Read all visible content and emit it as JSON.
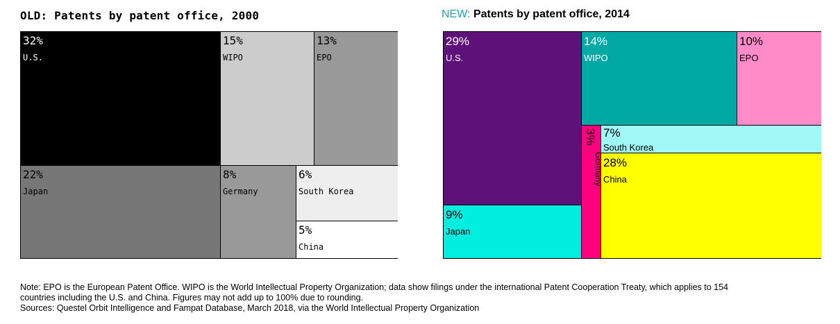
{
  "titles": {
    "old": "OLD: Patents by patent office, 2000",
    "new_prefix": "NEW:",
    "new_main": "Patents by patent office, 2014"
  },
  "colors": {
    "new_prefix": "#16a7a7"
  },
  "chart_data": [
    {
      "type": "treemap",
      "title": "OLD: Patents by patent office, 2000",
      "unit": "%",
      "categories": [
        "U.S.",
        "WIPO",
        "EPO",
        "Japan",
        "Germany",
        "South Korea",
        "China"
      ],
      "values": [
        32,
        15,
        13,
        22,
        8,
        6,
        5
      ],
      "labels": [
        "32%",
        "15%",
        "13%",
        "22%",
        "8%",
        "6%",
        "5%"
      ],
      "colors": [
        "#000000",
        "#cccccc",
        "#999999",
        "#777777",
        "#999999",
        "#eeeeee",
        "#ffffff"
      ],
      "text_colors": [
        "#ffffff",
        "#000000",
        "#000000",
        "#000000",
        "#000000",
        "#000000",
        "#000000"
      ]
    },
    {
      "type": "treemap",
      "title": "NEW: Patents by patent office, 2014",
      "unit": "%",
      "categories": [
        "U.S.",
        "WIPO",
        "EPO",
        "Japan",
        "Germany",
        "South Korea",
        "China"
      ],
      "values": [
        29,
        14,
        10,
        9,
        3,
        7,
        28
      ],
      "labels": [
        "29%",
        "14%",
        "10%",
        "9%",
        "3%",
        "7%",
        "28%"
      ],
      "colors": [
        "#5e1279",
        "#00a9a3",
        "#ff8cc8",
        "#00ede0",
        "#ff0080",
        "#9ff8f6",
        "#ffff00"
      ],
      "text_colors": [
        "#ffffff",
        "#ffffff",
        "#000000",
        "#000000",
        "#000000",
        "#000000",
        "#000000"
      ]
    }
  ],
  "footer": {
    "note_line1": "Note: EPO is the European Patent Office. WIPO is the World Intellectual Property Organization; data show filings under the international Patent Cooperation Treaty, which applies to 154",
    "note_line2": "countries including the U.S. and China. Figures may not add up to 100% due to rounding.",
    "sources": "Sources: Questel Orbit Intelligence and Fampat Database, March 2018, via the World Intellectual Property Organization"
  }
}
